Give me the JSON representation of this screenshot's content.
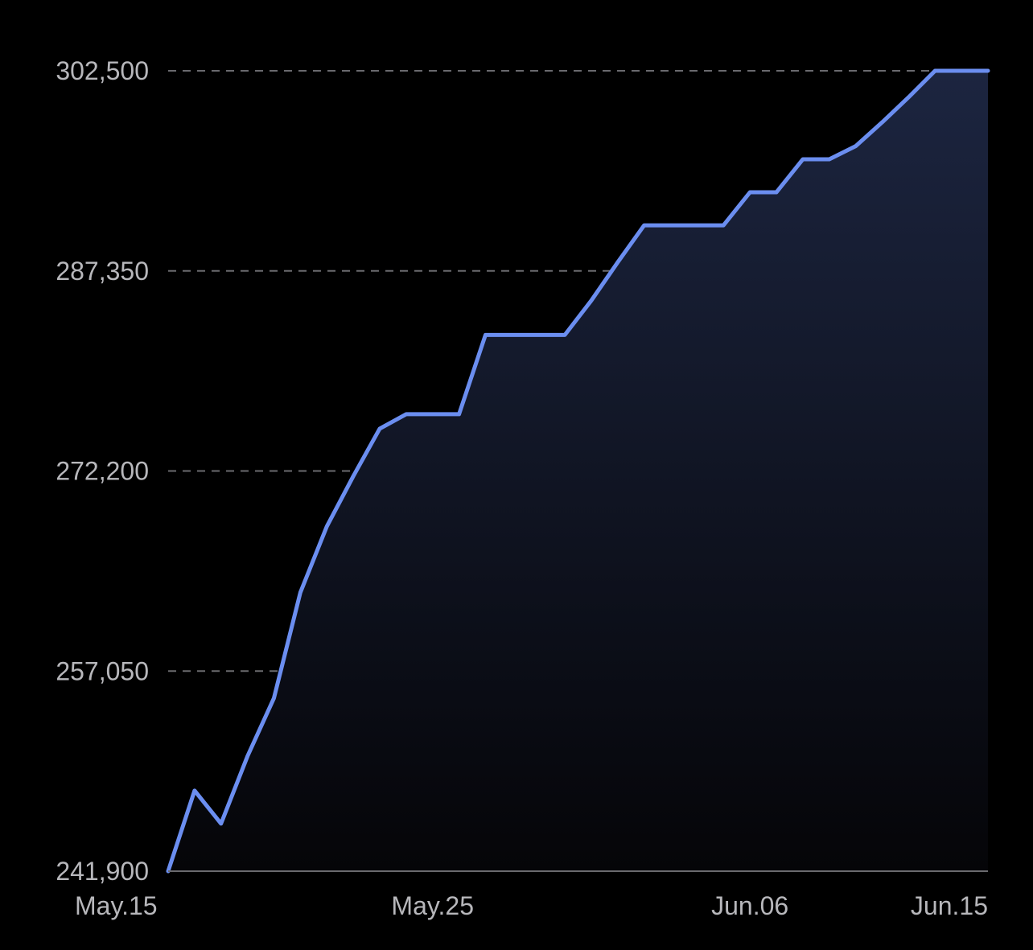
{
  "chart_data": {
    "type": "area",
    "title": "",
    "xlabel": "",
    "ylabel": "",
    "x": [
      "May.15",
      "May.16",
      "May.17",
      "May.18",
      "May.19",
      "May.20",
      "May.21",
      "May.22",
      "May.23",
      "May.24",
      "May.25",
      "May.26",
      "May.27",
      "May.28",
      "May.29",
      "May.30",
      "May.31",
      "Jun.01",
      "Jun.02",
      "Jun.03",
      "Jun.04",
      "Jun.05",
      "Jun.06",
      "Jun.07",
      "Jun.08",
      "Jun.09",
      "Jun.10",
      "Jun.11",
      "Jun.12",
      "Jun.13",
      "Jun.14",
      "Jun.15"
    ],
    "values": [
      241900,
      248000,
      245500,
      250600,
      255000,
      263000,
      268000,
      271800,
      275400,
      276500,
      276500,
      276500,
      282500,
      282500,
      282500,
      282500,
      285100,
      288000,
      290800,
      290800,
      290800,
      290800,
      293300,
      293300,
      295800,
      295800,
      296800,
      298600,
      300500,
      302500,
      302500,
      302500
    ],
    "y_ticks": [
      "241,900",
      "257,050",
      "272,200",
      "287,350",
      "302,500"
    ],
    "x_ticks": [
      "May.15",
      "May.25",
      "Jun.06",
      "Jun.15"
    ],
    "ylim": [
      241900,
      302500
    ],
    "grid": true,
    "line_color": "#6b8ef0",
    "fill_color_top": "#1c2540",
    "fill_color_bottom": "#050508",
    "grid_color": "#6a6a6e",
    "axis_color": "#6a6a6e"
  }
}
